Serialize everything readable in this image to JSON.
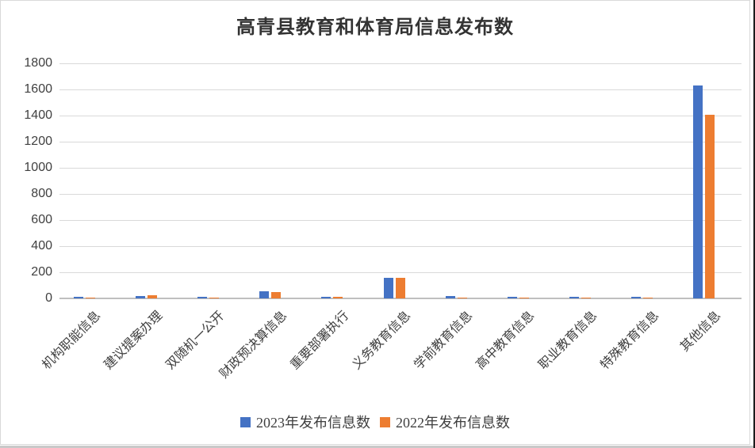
{
  "page": {
    "title": "高青县教育和体育局信息发布数"
  },
  "chart_data": {
    "type": "bar",
    "title": "高青县教育和体育局信息发布数",
    "categories": [
      "机构职能信息",
      "建议提案办理",
      "双随机一公开",
      "财政预决算信息",
      "重要部署执行",
      "义务教育信息",
      "学前教育信息",
      "高中教育信息",
      "职业教育信息",
      "特殊教育信息",
      "其他信息"
    ],
    "series": [
      {
        "name": "2023年发布信息数",
        "color": "#4472C4",
        "values": [
          15,
          20,
          10,
          52,
          15,
          155,
          16,
          10,
          11,
          13,
          1630
        ]
      },
      {
        "name": "2022年发布信息数",
        "color": "#ED7D31",
        "values": [
          8,
          22,
          8,
          50,
          12,
          160,
          8,
          8,
          8,
          8,
          1405
        ]
      }
    ],
    "xlabel": "",
    "ylabel": "",
    "ylim": [
      0,
      1800
    ],
    "ytick_step": 200,
    "grid": true,
    "legend_position": "bottom",
    "colors": {
      "grid": "#d9d9d9",
      "axis_baseline": "#bfbfbf",
      "tick_text": "#404040",
      "title_text": "#333333"
    }
  }
}
